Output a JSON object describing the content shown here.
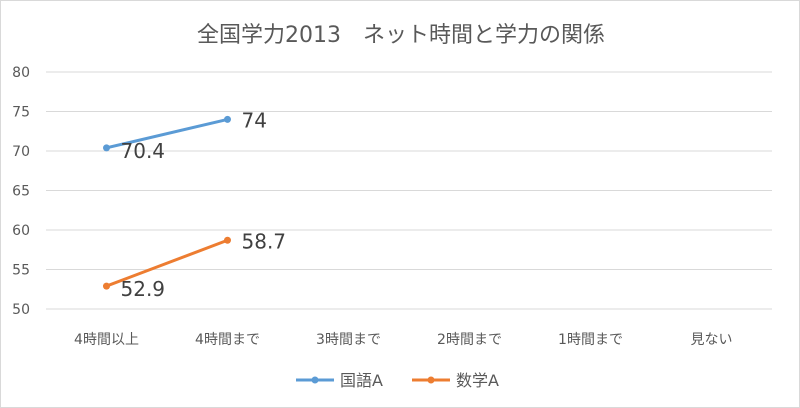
{
  "chart_data": {
    "type": "line",
    "title": "全国学力2013　ネット時間と学力の関係",
    "categories": [
      "4時間以上",
      "4時間まで",
      "3時間まで",
      "2時間まで",
      "1時間まで",
      "見ない"
    ],
    "ylim": [
      50,
      80
    ],
    "yticks": [
      50,
      55,
      60,
      65,
      70,
      75,
      80
    ],
    "grid": true,
    "legend_position": "bottom",
    "series": [
      {
        "name": "国語A",
        "color": "#5b9bd5",
        "values": [
          70.4,
          74,
          null,
          null,
          null,
          null
        ],
        "labels": [
          "70.4",
          "74"
        ]
      },
      {
        "name": "数学A",
        "color": "#ed7d31",
        "values": [
          52.9,
          58.7,
          null,
          null,
          null,
          null
        ],
        "labels": [
          "52.9",
          "58.7"
        ]
      }
    ]
  }
}
